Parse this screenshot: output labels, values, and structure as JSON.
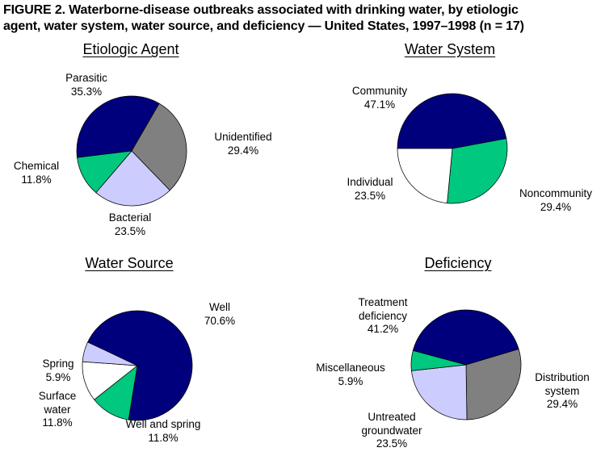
{
  "figure": {
    "title_lines": [
      "FIGURE 2.  Waterborne-disease outbreaks associated with drinking water, by etiologic",
      "agent, water system, water source, and deficiency — United States, 1997–1998 (n = 17)"
    ]
  },
  "colors": {
    "navy": "#00007d",
    "green": "#00c87e",
    "lavender": "#ccccff",
    "gray": "#808080",
    "white": "#ffffff"
  },
  "chart_data": [
    {
      "type": "pie",
      "title": "Etiologic Agent",
      "start_angle": 263,
      "slices": [
        {
          "label": "Parasitic",
          "value": 35.3,
          "color": "#00007d"
        },
        {
          "label": "Unidentified",
          "value": 29.4,
          "color": "#808080"
        },
        {
          "label": "Bacterial",
          "value": 23.5,
          "color": "#ccccff"
        },
        {
          "label": "Chemical",
          "value": 11.8,
          "color": "#00c87e"
        }
      ]
    },
    {
      "type": "pie",
      "title": "Water System",
      "start_angle": 270,
      "slices": [
        {
          "label": "Community",
          "value": 47.1,
          "color": "#00007d"
        },
        {
          "label": "Noncommunity",
          "value": 29.4,
          "color": "#00c87e"
        },
        {
          "label": "Individual",
          "value": 23.5,
          "color": "#ffffff"
        }
      ]
    },
    {
      "type": "pie",
      "title": "Water Source",
      "start_angle": 295,
      "slices": [
        {
          "label": "Well",
          "value": 70.6,
          "color": "#00007d"
        },
        {
          "label": "Well and spring",
          "value": 11.8,
          "color": "#00c87e"
        },
        {
          "label": "Surface water",
          "value": 11.8,
          "color": "#ffffff"
        },
        {
          "label": "Spring",
          "value": 5.9,
          "color": "#ccccff"
        }
      ]
    },
    {
      "type": "pie",
      "title": "Deficiency",
      "start_angle": 285,
      "slices": [
        {
          "label": "Treatment deficiency",
          "value": 41.2,
          "color": "#00007d"
        },
        {
          "label": "Distribution system",
          "value": 29.4,
          "color": "#808080"
        },
        {
          "label": "Untreated groundwater",
          "value": 23.5,
          "color": "#ccccff"
        },
        {
          "label": "Miscellaneous",
          "value": 5.9,
          "color": "#00c87e"
        }
      ]
    }
  ]
}
